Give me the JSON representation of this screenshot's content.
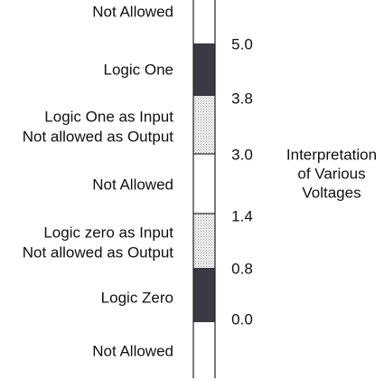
{
  "regions": [
    {
      "lines": [
        "Not Allowed"
      ]
    },
    {
      "lines": [
        "Logic One"
      ]
    },
    {
      "lines": [
        "Logic One as Input",
        "Not allowed as Output"
      ]
    },
    {
      "lines": [
        "Not Allowed"
      ]
    },
    {
      "lines": [
        "Logic zero as Input",
        "Not allowed as Output"
      ]
    },
    {
      "lines": [
        "Logic Zero"
      ]
    },
    {
      "lines": [
        "Not Allowed"
      ]
    }
  ],
  "voltages": [
    "5.0",
    "3.8",
    "3.0",
    "1.4",
    "0.8",
    "0.0"
  ],
  "caption": [
    "Interpretation",
    "of Various",
    "Voltages"
  ]
}
